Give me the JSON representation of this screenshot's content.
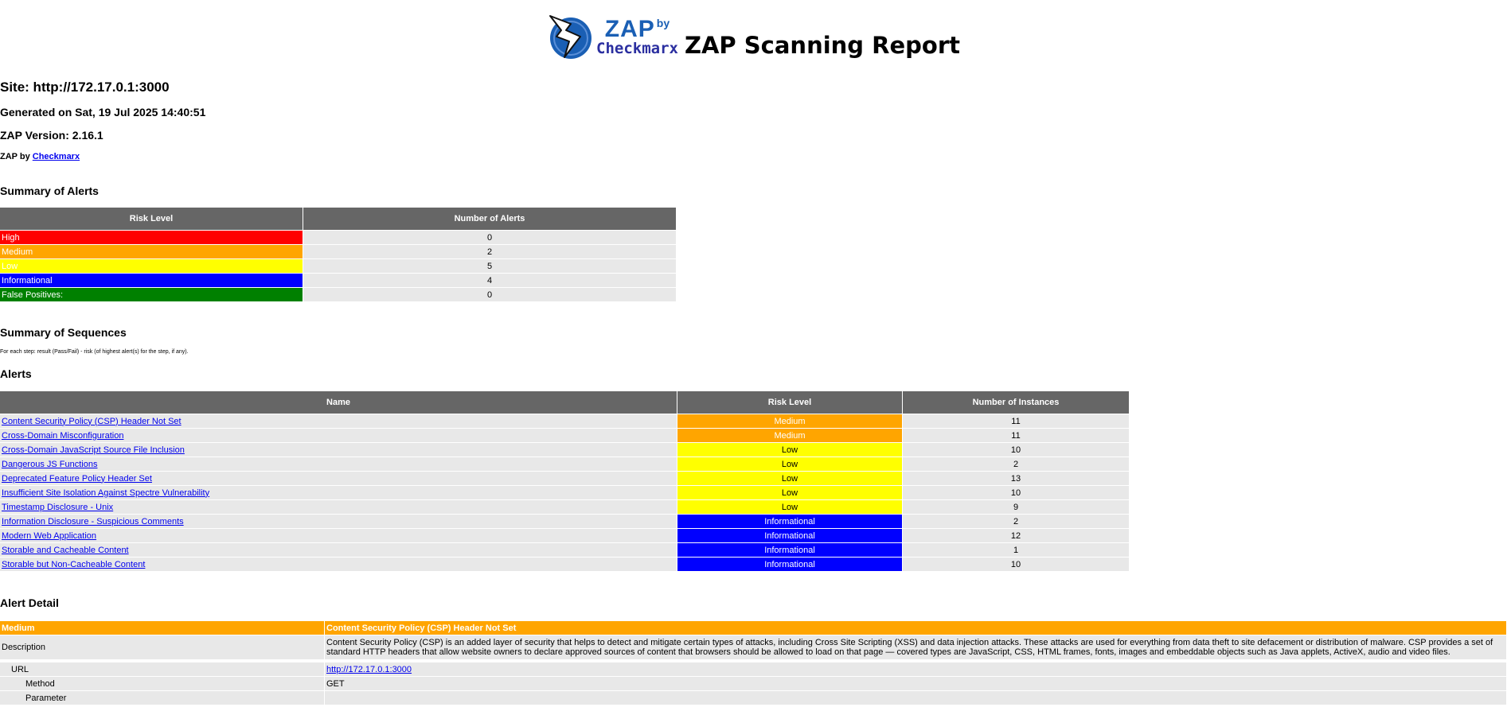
{
  "header": {
    "logo_zap": "ZAP",
    "logo_by": "by",
    "logo_checkmarx": "Checkmarx",
    "title": "ZAP Scanning Report"
  },
  "site_label": "Site: http://172.17.0.1:3000",
  "generated": "Generated on Sat, 19 Jul 2025 14:40:51",
  "version": "ZAP Version: 2.16.1",
  "zap_by": {
    "prefix": "ZAP by ",
    "link": "Checkmarx"
  },
  "summary": {
    "heading": "Summary of Alerts",
    "col_risk": "Risk Level",
    "col_count": "Number of Alerts",
    "rows": [
      {
        "level": "High",
        "count": "0",
        "color": "#ff0000"
      },
      {
        "level": "Medium",
        "count": "2",
        "color": "#ffa500"
      },
      {
        "level": "Low",
        "count": "5",
        "color": "#ffff00"
      },
      {
        "level": "Informational",
        "count": "4",
        "color": "#0000ff"
      },
      {
        "level": "False Positives:",
        "count": "0",
        "color": "#008000"
      }
    ]
  },
  "sequences": {
    "heading": "Summary of Sequences",
    "note": "For each step: result (Pass/Fail) - risk (of highest alert(s) for the step, if any)."
  },
  "alerts": {
    "heading": "Alerts",
    "col_name": "Name",
    "col_risk": "Risk Level",
    "col_instances": "Number of Instances",
    "rows": [
      {
        "name": "Content Security Policy (CSP) Header Not Set",
        "risk": "Medium",
        "instances": "11"
      },
      {
        "name": "Cross-Domain Misconfiguration",
        "risk": "Medium",
        "instances": "11"
      },
      {
        "name": "Cross-Domain JavaScript Source File Inclusion",
        "risk": "Low",
        "instances": "10"
      },
      {
        "name": "Dangerous JS Functions",
        "risk": "Low",
        "instances": "2"
      },
      {
        "name": "Deprecated Feature Policy Header Set",
        "risk": "Low",
        "instances": "13"
      },
      {
        "name": "Insufficient Site Isolation Against Spectre Vulnerability",
        "risk": "Low",
        "instances": "10"
      },
      {
        "name": "Timestamp Disclosure - Unix",
        "risk": "Low",
        "instances": "9"
      },
      {
        "name": "Information Disclosure - Suspicious Comments",
        "risk": "Informational",
        "instances": "2"
      },
      {
        "name": "Modern Web Application",
        "risk": "Informational",
        "instances": "12"
      },
      {
        "name": "Storable and Cacheable Content",
        "risk": "Informational",
        "instances": "1"
      },
      {
        "name": "Storable but Non-Cacheable Content",
        "risk": "Informational",
        "instances": "10"
      }
    ]
  },
  "detail": {
    "heading": "Alert Detail",
    "risk": "Medium",
    "title": "Content Security Policy (CSP) Header Not Set",
    "description_label": "Description",
    "description": "Content Security Policy (CSP) is an added layer of security that helps to detect and mitigate certain types of attacks, including Cross Site Scripting (XSS) and data injection attacks. These attacks are used for everything from data theft to site defacement or distribution of malware. CSP provides a set of standard HTTP headers that allow website owners to declare approved sources of content that browsers should be allowed to load on that page — covered types are JavaScript, CSS, HTML frames, fonts, images and embeddable objects such as Java applets, ActiveX, audio and video files.",
    "url_label": "URL",
    "url": "http://172.17.0.1:3000",
    "method_label": "Method",
    "method": "GET",
    "parameter_label": "Parameter",
    "parameter": ""
  },
  "colors": {
    "header_gray": "#666666",
    "row_gray": "#e8e8e8",
    "link_blue": "#0000ee"
  }
}
